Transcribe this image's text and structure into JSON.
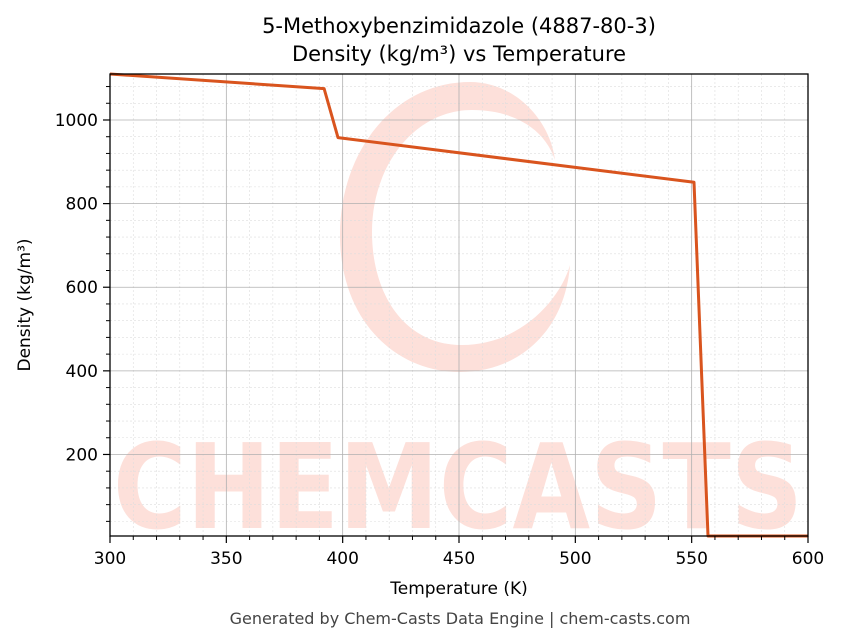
{
  "chart_data": {
    "type": "line",
    "title": "5-Methoxybenzimidazole (4887-80-3)",
    "subtitle": "Density (kg/m³) vs Temperature",
    "xlabel": "Temperature (K)",
    "ylabel": "Density (kg/m³)",
    "xlim": [
      300,
      600
    ],
    "ylim": [
      5,
      1110
    ],
    "x_ticks": [
      300,
      350,
      400,
      450,
      500,
      550,
      600
    ],
    "y_ticks": [
      200,
      400,
      600,
      800,
      1000
    ],
    "grid": true,
    "legend": "none",
    "series": [
      {
        "color": "#d9541e",
        "x": [
          300,
          392,
          398,
          551,
          557,
          600
        ],
        "y": [
          1110,
          1075,
          958,
          851,
          5,
          5
        ]
      }
    ]
  },
  "watermark": {
    "text": "CHEMCASTS",
    "color": "#fde0da"
  },
  "footer": "Generated by Chem-Casts Data Engine | chem-casts.com"
}
